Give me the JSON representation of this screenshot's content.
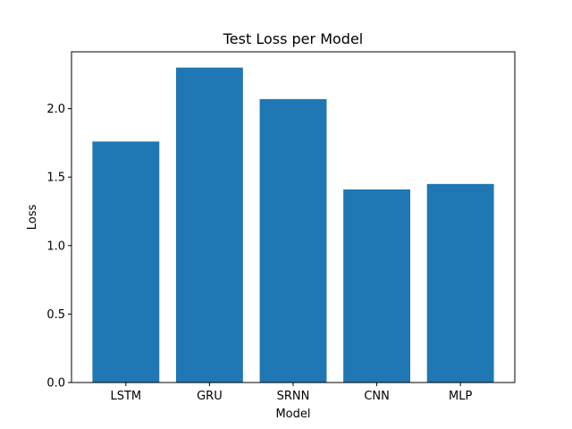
{
  "chart_data": {
    "type": "bar",
    "title": "Test Loss per Model",
    "xlabel": "Model",
    "ylabel": "Loss",
    "categories": [
      "LSTM",
      "GRU",
      "SRNN",
      "CNN",
      "MLP"
    ],
    "values": [
      1.76,
      2.3,
      2.07,
      1.41,
      1.45
    ],
    "ylim": [
      0,
      2.415
    ],
    "yticks": [
      0.0,
      0.5,
      1.0,
      1.5,
      2.0
    ],
    "ytick_labels": [
      "0.0",
      "0.5",
      "1.0",
      "1.5",
      "2.0"
    ],
    "grid": false,
    "legend": "none",
    "bar_color": "#1f77b4"
  }
}
